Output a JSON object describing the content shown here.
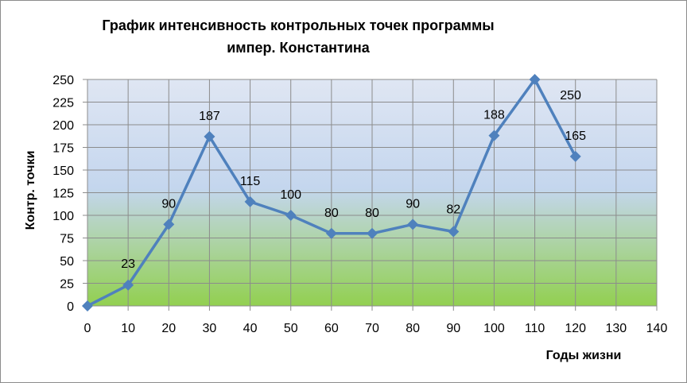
{
  "chart_data": {
    "type": "line",
    "title_line1": "График интенсивность контрольных точек  программы",
    "title_line2": "импер. Константина",
    "xlabel": "Годы жизни",
    "ylabel": "Контр. точки",
    "xlim": [
      0,
      140
    ],
    "ylim": [
      0,
      250
    ],
    "x_ticks": [
      0,
      10,
      20,
      30,
      40,
      50,
      60,
      70,
      80,
      90,
      100,
      110,
      120,
      130,
      140
    ],
    "y_ticks": [
      0,
      25,
      50,
      75,
      100,
      125,
      150,
      175,
      200,
      225,
      250
    ],
    "grid": true,
    "legend": "none",
    "series": [
      {
        "x": [
          0,
          10,
          20,
          30,
          40,
          50,
          60,
          70,
          80,
          90,
          100,
          110,
          120
        ],
        "y": [
          0,
          23,
          90,
          187,
          115,
          100,
          80,
          80,
          90,
          82,
          188,
          250,
          165
        ],
        "labels": [
          "",
          "23",
          "90",
          "187",
          "115",
          "100",
          "80",
          "80",
          "90",
          "82",
          "188",
          "250",
          "165"
        ]
      }
    ],
    "colors": {
      "line": "#4f81bd",
      "marker": "#4f81bd",
      "grid": "#8c8c8c",
      "bg_top": "#dfe6f3",
      "bg_mid": "#c4d6ee",
      "bg_bottom": "#92d050"
    }
  }
}
